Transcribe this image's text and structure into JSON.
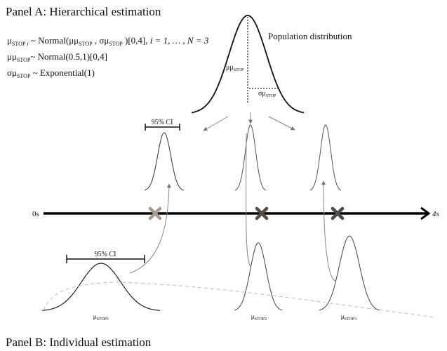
{
  "panel_a": {
    "title": "Panel A: Hierarchical estimation",
    "formula1": {
      "mu": "μ",
      "sub1": "STOP",
      "i": " i",
      "rest1": " ~ Normal(μμ",
      "sub2": "STOP",
      "rest2": " , σμ",
      "sub3": "STOP",
      "rest3": " )[0,4],  ",
      "tail": "i = 1, … , N = 3"
    },
    "formula2": {
      "a": "μμ",
      "sub": "STOP",
      "b": "~ Normal(0.5,1)[0,4]"
    },
    "formula3": {
      "a": "σμ",
      "sub": "STOP",
      "b": " ~ Exponential(1)"
    },
    "population_label": "Population distribution",
    "mean_label": {
      "a": "μμ",
      "sub": "STOP"
    },
    "sd_label": {
      "a": "σμ",
      "sub": "STOP"
    },
    "ci_label": "95% CI"
  },
  "axis": {
    "start_label": "0s",
    "end_label": "4s"
  },
  "markers": [
    {
      "color": "#a89a8c"
    },
    {
      "color": "#5a4a42"
    },
    {
      "color": "#4a4a4a"
    }
  ],
  "panel_b": {
    "title": "Panel B: Individual estimation",
    "ci_label": "95% CI",
    "labels": [
      {
        "a": "μ",
        "sub": "STOP1"
      },
      {
        "a": "μ",
        "sub": "STOP2"
      },
      {
        "a": "μ",
        "sub": "STOP3"
      }
    ]
  }
}
